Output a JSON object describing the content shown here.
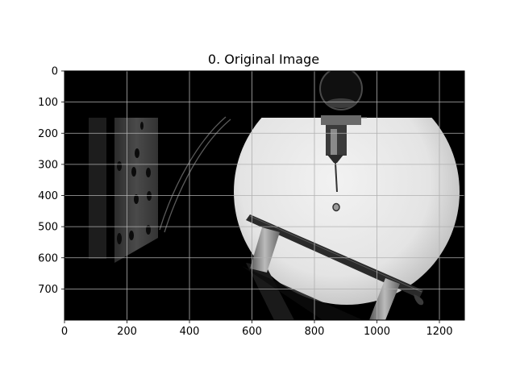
{
  "figure": {
    "title": "0. Original Image",
    "x_ticks": [
      0,
      200,
      400,
      600,
      800,
      1000,
      1200
    ],
    "y_ticks": [
      0,
      100,
      200,
      300,
      400,
      500,
      600,
      700
    ],
    "x_range": [
      0,
      1280
    ],
    "y_range": [
      0,
      800
    ],
    "grid": true,
    "image_description_colors": {
      "background": "#000000",
      "lit_circle": "#e6e6e6",
      "grid_line": "#b0b0b0"
    }
  }
}
